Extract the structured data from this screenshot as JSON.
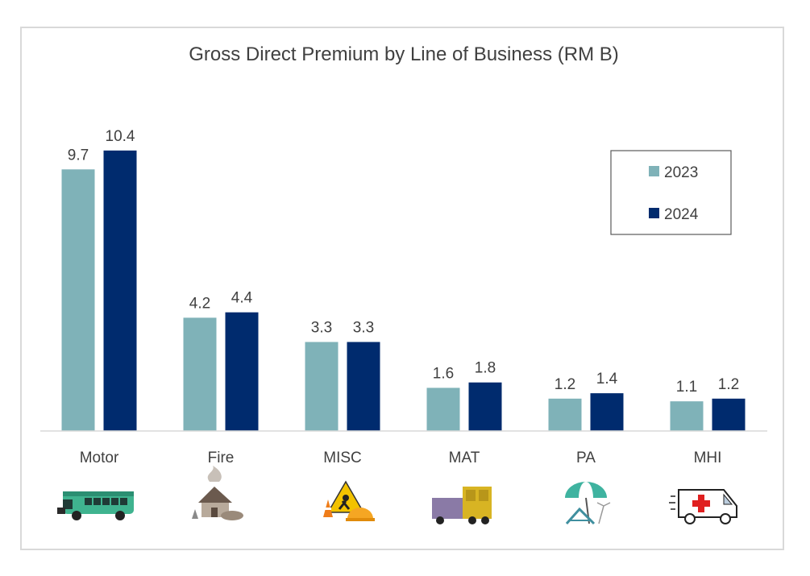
{
  "chart_data": {
    "type": "bar",
    "title": "Gross Direct Premium by Line of Business (RM B)",
    "xlabel": "",
    "ylabel": "",
    "categories": [
      "Motor",
      "Fire",
      "MISC",
      "MAT",
      "PA",
      "MHI"
    ],
    "series": [
      {
        "name": "2023",
        "color": "#7fb2b8",
        "values": [
          9.7,
          4.2,
          3.3,
          1.6,
          1.2,
          1.1
        ]
      },
      {
        "name": "2024",
        "color": "#002b6e",
        "values": [
          10.4,
          4.4,
          3.3,
          1.8,
          1.4,
          1.2
        ]
      }
    ],
    "data_labels": [
      [
        "9.7",
        "4.2",
        "3.3",
        "1.6",
        "1.2",
        "1.1"
      ],
      [
        "10.4",
        "4.4",
        "3.3",
        "1.8",
        "1.4",
        "1.2"
      ]
    ],
    "ylim": [
      0,
      11.5
    ],
    "grid": false,
    "legend": "right",
    "category_icons": [
      "bus-icon",
      "burning-house-icon",
      "construction-worker-icon",
      "cargo-truck-icon",
      "beach-umbrella-icon",
      "ambulance-icon"
    ]
  }
}
